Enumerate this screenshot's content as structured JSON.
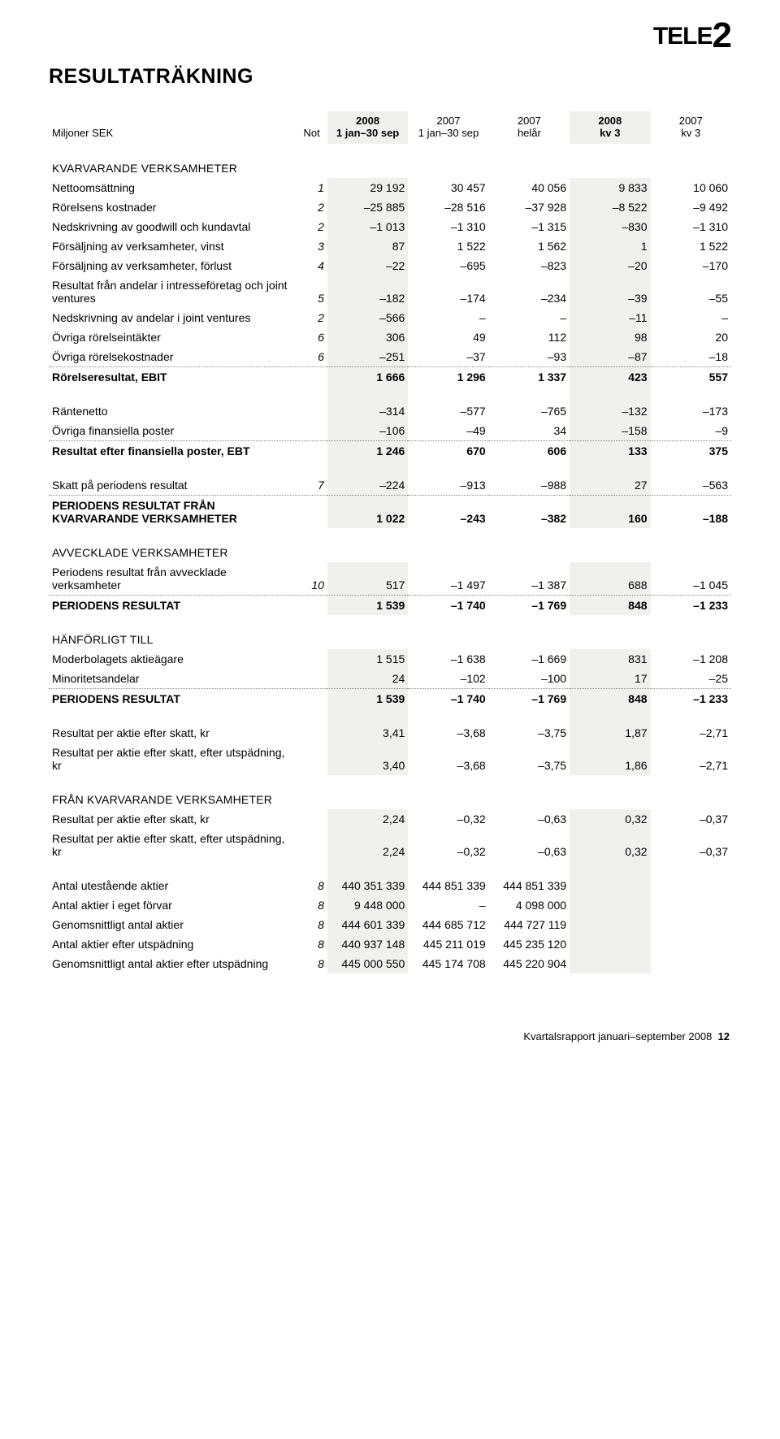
{
  "logo": {
    "part1": "TELE",
    "part2": "2"
  },
  "title": "RESULTATRÄKNING",
  "header": {
    "label": "Miljoner SEK",
    "not": "Not",
    "cols": [
      {
        "y": "2008",
        "p": "1 jan–30 sep",
        "hl": true
      },
      {
        "y": "2007",
        "p": "1 jan–30 sep",
        "hl": false
      },
      {
        "y": "2007",
        "p": "helår",
        "hl": false
      },
      {
        "y": "2008",
        "p": "kv 3",
        "hl": true
      },
      {
        "y": "2007",
        "p": "kv 3",
        "hl": false
      }
    ]
  },
  "rows": [
    {
      "type": "section",
      "label": "KVARVARANDE VERKSAMHETER"
    },
    {
      "type": "data",
      "label": "Nettoomsättning",
      "not": "1",
      "v": [
        "29 192",
        "30 457",
        "40 056",
        "9 833",
        "10 060"
      ]
    },
    {
      "type": "data",
      "label": "Rörelsens kostnader",
      "not": "2",
      "v": [
        "–25 885",
        "–28 516",
        "–37 928",
        "–8 522",
        "–9 492"
      ]
    },
    {
      "type": "data",
      "label": "Nedskrivning av goodwill och kundavtal",
      "not": "2",
      "v": [
        "–1 013",
        "–1 310",
        "–1 315",
        "–830",
        "–1 310"
      ]
    },
    {
      "type": "data",
      "label": "Försäljning av verksamheter, vinst",
      "not": "3",
      "v": [
        "87",
        "1 522",
        "1 562",
        "1",
        "1 522"
      ]
    },
    {
      "type": "data",
      "label": "Försäljning av verksamheter, förlust",
      "not": "4",
      "v": [
        "–22",
        "–695",
        "–823",
        "–20",
        "–170"
      ]
    },
    {
      "type": "data",
      "label": "Resultat från andelar i intresseföretag och joint ventures",
      "not": "5",
      "v": [
        "–182",
        "–174",
        "–234",
        "–39",
        "–55"
      ]
    },
    {
      "type": "data",
      "label": "Nedskrivning av andelar i joint ventures",
      "not": "2",
      "v": [
        "–566",
        "–",
        "–",
        "–11",
        "–"
      ]
    },
    {
      "type": "data",
      "label": "Övriga rörelseintäkter",
      "not": "6",
      "v": [
        "306",
        "49",
        "112",
        "98",
        "20"
      ]
    },
    {
      "type": "data",
      "label": "Övriga rörelsekostnader",
      "not": "6",
      "v": [
        "–251",
        "–37",
        "–93",
        "–87",
        "–18"
      ]
    },
    {
      "type": "bold",
      "dotted": true,
      "label": "Rörelseresultat, EBIT",
      "not": "",
      "v": [
        "1 666",
        "1 296",
        "1 337",
        "423",
        "557"
      ]
    },
    {
      "type": "data",
      "gap": true,
      "label": "Räntenetto",
      "not": "",
      "v": [
        "–314",
        "–577",
        "–765",
        "–132",
        "–173"
      ]
    },
    {
      "type": "data",
      "label": "Övriga finansiella poster",
      "not": "",
      "v": [
        "–106",
        "–49",
        "34",
        "–158",
        "–9"
      ]
    },
    {
      "type": "bold",
      "dotted": true,
      "label": "Resultat efter finansiella poster, EBT",
      "not": "",
      "v": [
        "1 246",
        "670",
        "606",
        "133",
        "375"
      ]
    },
    {
      "type": "data",
      "gap": true,
      "label": "Skatt på periodens resultat",
      "not": "7",
      "v": [
        "–224",
        "–913",
        "–988",
        "27",
        "–563"
      ]
    },
    {
      "type": "bold",
      "dotted": true,
      "label": "PERIODENS RESULTAT FRÅN KVARVARANDE VERKSAMHETER",
      "not": "",
      "v": [
        "1 022",
        "–243",
        "–382",
        "160",
        "–188"
      ]
    },
    {
      "type": "section",
      "label": "AVVECKLADE VERKSAMHETER"
    },
    {
      "type": "data",
      "label": "Periodens resultat från avvecklade verksamheter",
      "not": "10",
      "v": [
        "517",
        "–1 497",
        "–1 387",
        "688",
        "–1 045"
      ]
    },
    {
      "type": "bold",
      "dotted": true,
      "label": "PERIODENS RESULTAT",
      "not": "",
      "v": [
        "1 539",
        "–1 740",
        "–1 769",
        "848",
        "–1 233"
      ]
    },
    {
      "type": "section",
      "label": "HÄNFÖRLIGT TILL"
    },
    {
      "type": "data",
      "label": "Moderbolagets aktieägare",
      "not": "",
      "v": [
        "1 515",
        "–1 638",
        "–1 669",
        "831",
        "–1 208"
      ]
    },
    {
      "type": "data",
      "label": "Minoritetsandelar",
      "not": "",
      "v": [
        "24",
        "–102",
        "–100",
        "17",
        "–25"
      ]
    },
    {
      "type": "bold",
      "dotted": true,
      "label": "PERIODENS RESULTAT",
      "not": "",
      "v": [
        "1 539",
        "–1 740",
        "–1 769",
        "848",
        "–1 233"
      ]
    },
    {
      "type": "data",
      "gap": true,
      "label": "Resultat per aktie efter skatt, kr",
      "not": "",
      "v": [
        "3,41",
        "–3,68",
        "–3,75",
        "1,87",
        "–2,71"
      ]
    },
    {
      "type": "data",
      "label": "Resultat per aktie efter skatt, efter utspädning, kr",
      "not": "",
      "v": [
        "3,40",
        "–3,68",
        "–3,75",
        "1,86",
        "–2,71"
      ]
    },
    {
      "type": "section",
      "label": "FRÅN KVARVARANDE VERKSAMHETER"
    },
    {
      "type": "data",
      "label": "Resultat per aktie efter skatt, kr",
      "not": "",
      "v": [
        "2,24",
        "–0,32",
        "–0,63",
        "0,32",
        "–0,37"
      ]
    },
    {
      "type": "data",
      "label": "Resultat per aktie efter skatt, efter utspädning, kr",
      "not": "",
      "v": [
        "2,24",
        "–0,32",
        "–0,63",
        "0,32",
        "–0,37"
      ]
    },
    {
      "type": "data",
      "gap": true,
      "label": "Antal utestående aktier",
      "not": "8",
      "v": [
        "440 351 339",
        "444 851 339",
        "444 851 339",
        "",
        ""
      ]
    },
    {
      "type": "data",
      "label": "Antal aktier i eget förvar",
      "not": "8",
      "v": [
        "9 448 000",
        "–",
        "4 098 000",
        "",
        ""
      ]
    },
    {
      "type": "data",
      "label": "Genomsnittligt antal aktier",
      "not": "8",
      "v": [
        "444 601 339",
        "444 685 712",
        "444 727 119",
        "",
        ""
      ]
    },
    {
      "type": "data",
      "label": "Antal aktier efter utspädning",
      "not": "8",
      "v": [
        "440 937 148",
        "445 211 019",
        "445 235 120",
        "",
        ""
      ]
    },
    {
      "type": "data",
      "label": "Genomsnittligt antal aktier efter utspädning",
      "not": "8",
      "v": [
        "445 000 550",
        "445 174 708",
        "445 220 904",
        "",
        ""
      ]
    }
  ],
  "footer": {
    "text": "Kvartalsrapport januari–september 2008",
    "page": "12"
  }
}
